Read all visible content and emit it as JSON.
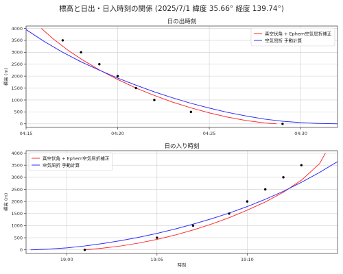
{
  "suptitle": "標高と日出・日入時刻の関係 (2025/7/1 緯度 35.66° 経度 139.74°)",
  "chart_data": [
    {
      "type": "line",
      "title": "日の出時刻",
      "xlabel": "",
      "ylabel": "標高 (m)",
      "x_unit": "time_of_day",
      "xlim": [
        "04:15",
        "04:32"
      ],
      "ylim": [
        -150,
        4100
      ],
      "x_ticks": [
        "04:15",
        "04:20",
        "04:25",
        "04:30"
      ],
      "y_ticks": [
        0,
        500,
        1000,
        1500,
        2000,
        2500,
        3000,
        3500,
        4000
      ],
      "grid": true,
      "legend": "top-right",
      "series": [
        {
          "name": "真空伏角 + Ephem空気屈折補正",
          "kind": "line",
          "color": "#ff2b2b",
          "x": [
            "04:15:50",
            "04:16:30",
            "04:17:20",
            "04:18:00",
            "04:19:00",
            "04:20:00",
            "04:21:00",
            "04:22:00",
            "04:23:00",
            "04:24:00",
            "04:25:00",
            "04:26:00",
            "04:27:00",
            "04:28:00",
            "04:28:40"
          ],
          "y": [
            4000,
            3550,
            3060,
            2720,
            2260,
            1860,
            1500,
            1190,
            910,
            670,
            460,
            280,
            140,
            40,
            0
          ]
        },
        {
          "name": "空気屈折 手動計算",
          "kind": "line",
          "color": "#2b2bff",
          "x": [
            "04:15:00",
            "04:16:00",
            "04:17:00",
            "04:18:00",
            "04:19:00",
            "04:20:00",
            "04:21:00",
            "04:22:00",
            "04:23:00",
            "04:24:00",
            "04:25:00",
            "04:26:00",
            "04:27:00",
            "04:28:00",
            "04:29:00",
            "04:30:00",
            "04:31:00",
            "04:32:00"
          ],
          "y": [
            3950,
            3450,
            3000,
            2600,
            2250,
            1920,
            1620,
            1340,
            1090,
            860,
            660,
            480,
            330,
            200,
            110,
            50,
            15,
            0
          ]
        },
        {
          "name": "",
          "kind": "scatter",
          "color": "#000000",
          "x": [
            "04:17:00",
            "04:18:00",
            "04:19:00",
            "04:20:00",
            "04:21:00",
            "04:22:00",
            "04:24:00",
            "04:29:00"
          ],
          "y": [
            3500,
            3000,
            2500,
            2000,
            1500,
            1000,
            500,
            0
          ]
        }
      ]
    },
    {
      "type": "line",
      "title": "日の入り時刻",
      "xlabel": "時刻",
      "ylabel": "標高 (m)",
      "x_unit": "time_of_day",
      "xlim": [
        "18:57:45",
        "19:15:00"
      ],
      "ylim": [
        -150,
        4100
      ],
      "x_ticks": [
        "19:00",
        "19:05",
        "19:10"
      ],
      "y_ticks": [
        0,
        500,
        1000,
        1500,
        2000,
        2500,
        3000,
        3500,
        4000
      ],
      "grid": true,
      "legend": "top-left",
      "series": [
        {
          "name": "真空伏角 + Ephem空気屈折補正",
          "kind": "line",
          "color": "#ff2b2b",
          "x": [
            "19:01:00",
            "19:02:00",
            "19:03:00",
            "19:04:00",
            "19:05:00",
            "19:06:00",
            "19:07:00",
            "19:08:00",
            "19:09:00",
            "19:10:00",
            "19:11:00",
            "19:12:00",
            "19:13:00",
            "19:14:00",
            "19:14:20"
          ],
          "y": [
            0,
            70,
            160,
            280,
            430,
            610,
            820,
            1060,
            1330,
            1640,
            1980,
            2380,
            2880,
            3560,
            4000
          ]
        },
        {
          "name": "空気屈折 手動計算",
          "kind": "line",
          "color": "#2b2bff",
          "x": [
            "18:58:00",
            "18:59:00",
            "19:00:00",
            "19:01:00",
            "19:02:00",
            "19:03:00",
            "19:04:00",
            "19:05:00",
            "19:06:00",
            "19:07:00",
            "19:08:00",
            "19:09:00",
            "19:10:00",
            "19:11:00",
            "19:12:00",
            "19:13:00",
            "19:14:00",
            "19:15:00"
          ],
          "y": [
            0,
            30,
            80,
            160,
            260,
            380,
            520,
            680,
            860,
            1060,
            1280,
            1520,
            1790,
            2090,
            2420,
            2790,
            3200,
            3650
          ]
        },
        {
          "name": "",
          "kind": "scatter",
          "color": "#000000",
          "x": [
            "19:01:00",
            "19:05:00",
            "19:07:00",
            "19:09:00",
            "19:10:00",
            "19:11:00",
            "19:12:00",
            "19:13:00"
          ],
          "y": [
            0,
            500,
            1000,
            1500,
            2000,
            2500,
            3000,
            3500
          ]
        }
      ]
    }
  ]
}
